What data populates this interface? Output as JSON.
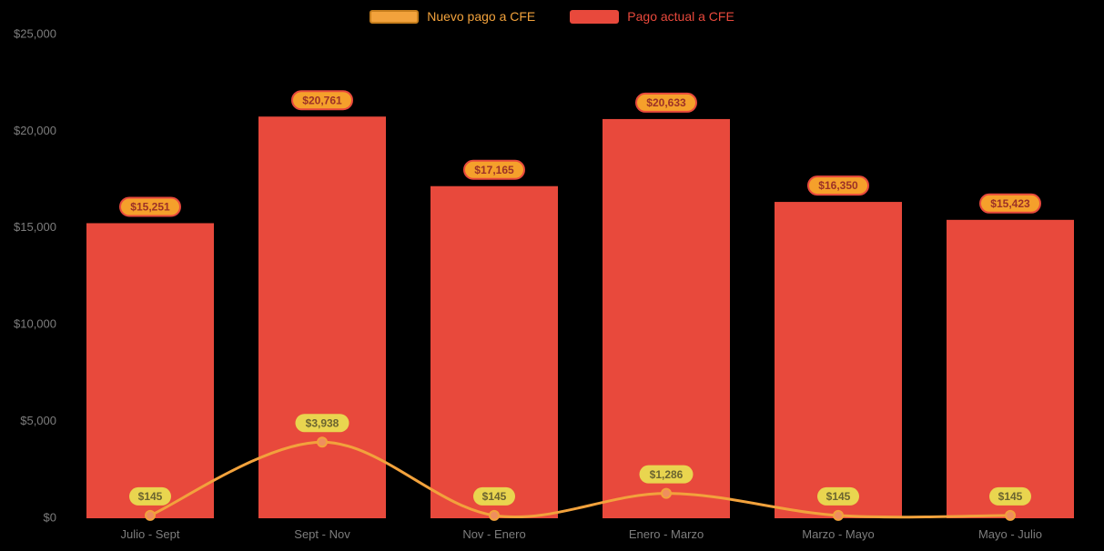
{
  "chart_data": {
    "type": "bar",
    "subtype": "bar-with-line-overlay",
    "categories": [
      "Julio - Sept",
      "Sept - Nov",
      "Nov - Enero",
      "Enero - Marzo",
      "Marzo - Mayo",
      "Mayo - Julio"
    ],
    "series": [
      {
        "name": "Nuevo pago a CFE",
        "type": "line",
        "values": [
          145,
          3938,
          145,
          1286,
          145,
          145
        ],
        "labels": [
          "$145",
          "$3,938",
          "$145",
          "$1,286",
          "$145",
          "$145"
        ]
      },
      {
        "name": "Pago actual a CFE",
        "type": "bar",
        "values": [
          15251,
          20761,
          17165,
          20633,
          16350,
          15423
        ],
        "labels": [
          "$15,251",
          "$20,761",
          "$17,165",
          "$20,633",
          "$16,350",
          "$15,423"
        ]
      }
    ],
    "yticks": [
      {
        "value": 0,
        "label": "$0"
      },
      {
        "value": 5000,
        "label": "$5,000"
      },
      {
        "value": 10000,
        "label": "$10,000"
      },
      {
        "value": 15000,
        "label": "$15,000"
      },
      {
        "value": 20000,
        "label": "$20,000"
      },
      {
        "value": 25000,
        "label": "$25,000"
      }
    ],
    "ylim": [
      0,
      25000
    ],
    "grid": false,
    "legend_position": "top",
    "colors": {
      "background": "#000000",
      "bar": "#e8493c",
      "line": "#f2a23c",
      "line_point": "#ef8e5e",
      "bar_badge_bg": "#f5a02b",
      "bar_badge_text": "#9c3127",
      "bar_badge_border": "#e8493c",
      "line_badge_bg": "#e9d54f",
      "line_badge_text": "#6b6430",
      "axis_text": "#7d7d7d",
      "legend_line_text": "#f2a23c",
      "legend_bar_text": "#e8493c",
      "legend_line_swatch_border": "#c87f1d"
    }
  }
}
